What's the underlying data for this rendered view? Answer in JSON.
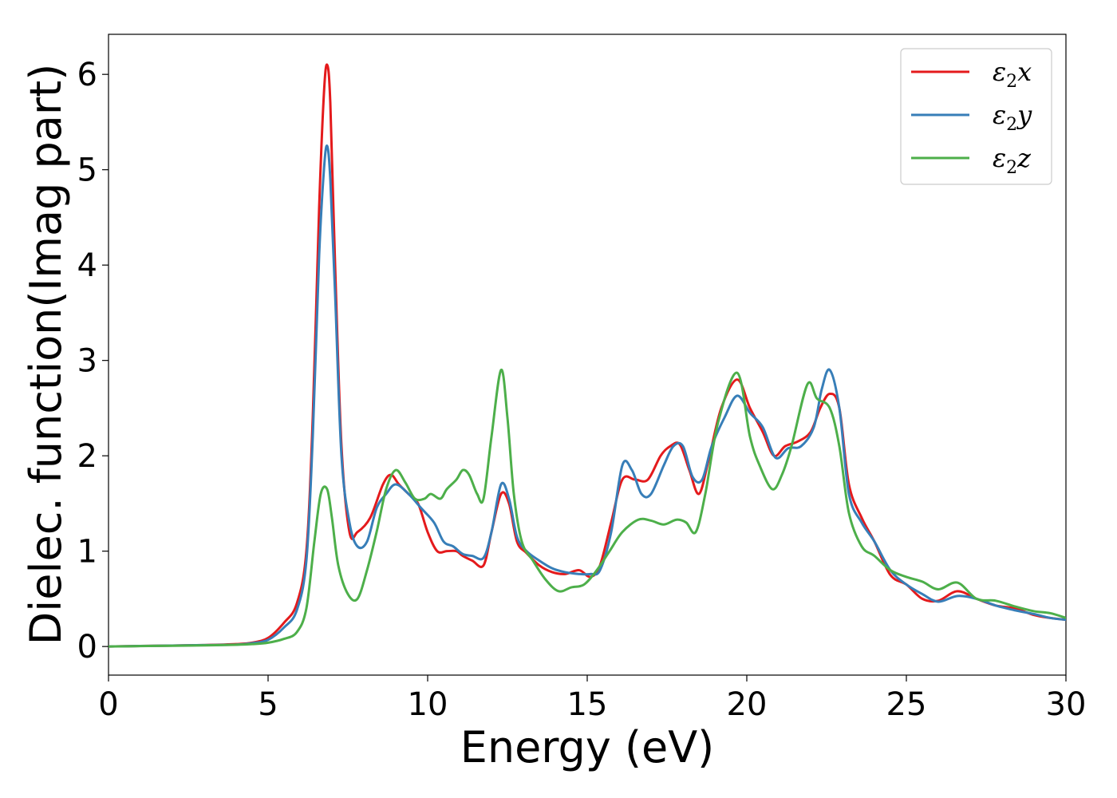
{
  "chart_data": {
    "type": "line",
    "title": "",
    "xlabel": "Energy (eV)",
    "ylabel": "Dielec. function(Imag part)",
    "xlim": [
      0,
      30
    ],
    "ylim": [
      -0.3,
      6.42
    ],
    "xticks": [
      0,
      5,
      10,
      15,
      20,
      25,
      30
    ],
    "yticks": [
      0,
      1,
      2,
      3,
      4,
      5,
      6
    ],
    "grid": false,
    "legend_position": "top-right",
    "series": [
      {
        "name": "ε₂x",
        "legend_main": "ε",
        "legend_sub": "2",
        "legend_tail": "x",
        "color": "#e41a1c",
        "x": [
          0,
          1,
          2,
          3,
          4,
          4.5,
          5,
          5.5,
          5.9,
          6.2,
          6.4,
          6.6,
          6.75,
          6.85,
          6.95,
          7.1,
          7.3,
          7.55,
          7.8,
          8.2,
          8.6,
          8.85,
          9.1,
          9.4,
          9.7,
          10.0,
          10.3,
          10.6,
          10.9,
          11.1,
          11.4,
          11.75,
          12.0,
          12.3,
          12.55,
          12.8,
          13.1,
          13.5,
          13.9,
          14.3,
          14.75,
          15.1,
          15.4,
          15.75,
          16.1,
          16.5,
          16.9,
          17.3,
          17.6,
          17.9,
          18.2,
          18.5,
          18.8,
          19.2,
          19.7,
          20.1,
          20.5,
          20.85,
          21.2,
          21.6,
          22.0,
          22.3,
          22.6,
          22.9,
          23.2,
          23.6,
          24.0,
          24.5,
          25.0,
          25.5,
          26.0,
          26.6,
          27.2,
          27.8,
          28.4,
          29.0,
          29.5,
          30.0
        ],
        "y": [
          0,
          0.005,
          0.01,
          0.015,
          0.025,
          0.04,
          0.09,
          0.25,
          0.45,
          1.0,
          2.4,
          4.6,
          5.8,
          6.1,
          5.7,
          4.0,
          2.1,
          1.2,
          1.2,
          1.35,
          1.7,
          1.8,
          1.7,
          1.6,
          1.5,
          1.2,
          1.0,
          1.0,
          1.0,
          0.95,
          0.9,
          0.85,
          1.2,
          1.6,
          1.5,
          1.1,
          0.98,
          0.85,
          0.78,
          0.76,
          0.8,
          0.73,
          0.85,
          1.3,
          1.75,
          1.75,
          1.75,
          2.0,
          2.1,
          2.12,
          1.85,
          1.6,
          1.95,
          2.5,
          2.8,
          2.5,
          2.25,
          2.0,
          2.1,
          2.15,
          2.25,
          2.5,
          2.65,
          2.5,
          1.7,
          1.35,
          1.1,
          0.75,
          0.65,
          0.5,
          0.48,
          0.58,
          0.5,
          0.43,
          0.4,
          0.33,
          0.3,
          0.28
        ]
      },
      {
        "name": "ε₂y",
        "legend_main": "ε",
        "legend_sub": "2",
        "legend_tail": "y",
        "color": "#377eb8",
        "x": [
          0,
          1,
          2,
          3,
          4,
          4.5,
          5,
          5.5,
          5.9,
          6.2,
          6.4,
          6.6,
          6.75,
          6.85,
          6.95,
          7.1,
          7.3,
          7.55,
          7.8,
          8.1,
          8.4,
          8.7,
          9.0,
          9.4,
          9.8,
          10.2,
          10.5,
          10.8,
          11.1,
          11.4,
          11.75,
          12.0,
          12.3,
          12.55,
          12.8,
          13.1,
          13.5,
          13.9,
          14.3,
          14.75,
          15.1,
          15.4,
          15.75,
          16.1,
          16.4,
          16.7,
          17.0,
          17.4,
          17.7,
          18.0,
          18.3,
          18.6,
          18.9,
          19.3,
          19.7,
          20.1,
          20.5,
          20.9,
          21.3,
          21.7,
          22.1,
          22.35,
          22.6,
          22.9,
          23.2,
          23.6,
          24.0,
          24.5,
          25.0,
          25.5,
          26.0,
          26.6,
          27.2,
          27.8,
          28.4,
          29.0,
          29.5,
          30.0
        ],
        "y": [
          0,
          0.005,
          0.01,
          0.015,
          0.02,
          0.035,
          0.07,
          0.2,
          0.38,
          0.9,
          2.2,
          4.1,
          5.0,
          5.25,
          4.9,
          3.7,
          2.0,
          1.3,
          1.05,
          1.1,
          1.45,
          1.6,
          1.7,
          1.6,
          1.45,
          1.3,
          1.1,
          1.05,
          0.97,
          0.95,
          0.93,
          1.2,
          1.7,
          1.55,
          1.15,
          1.0,
          0.9,
          0.82,
          0.78,
          0.76,
          0.76,
          0.8,
          1.2,
          1.9,
          1.85,
          1.6,
          1.6,
          1.9,
          2.1,
          2.1,
          1.78,
          1.75,
          2.1,
          2.4,
          2.63,
          2.45,
          2.3,
          1.98,
          2.08,
          2.1,
          2.3,
          2.7,
          2.9,
          2.5,
          1.6,
          1.3,
          1.1,
          0.8,
          0.65,
          0.55,
          0.47,
          0.53,
          0.5,
          0.43,
          0.38,
          0.34,
          0.3,
          0.28
        ]
      },
      {
        "name": "ε₂z",
        "legend_main": "ε",
        "legend_sub": "2",
        "legend_tail": "z",
        "color": "#4daf4a",
        "x": [
          0,
          1,
          2,
          3,
          4,
          4.5,
          5,
          5.5,
          5.9,
          6.2,
          6.45,
          6.65,
          6.85,
          7.0,
          7.2,
          7.5,
          7.8,
          8.1,
          8.4,
          8.7,
          9.0,
          9.3,
          9.6,
          9.9,
          10.1,
          10.4,
          10.6,
          10.9,
          11.1,
          11.3,
          11.55,
          11.75,
          12.0,
          12.3,
          12.5,
          12.7,
          12.95,
          13.3,
          13.7,
          14.1,
          14.5,
          14.9,
          15.3,
          15.7,
          16.1,
          16.6,
          17.0,
          17.4,
          17.8,
          18.1,
          18.4,
          18.7,
          19.1,
          19.7,
          20.1,
          20.4,
          20.8,
          21.1,
          21.4,
          21.9,
          22.2,
          22.6,
          22.9,
          23.2,
          23.6,
          24.0,
          24.5,
          25.0,
          25.5,
          26.0,
          26.6,
          27.2,
          27.8,
          28.4,
          29.0,
          29.5,
          30.0
        ],
        "y": [
          0,
          0.004,
          0.008,
          0.012,
          0.018,
          0.025,
          0.04,
          0.08,
          0.15,
          0.4,
          1.1,
          1.6,
          1.65,
          1.35,
          0.85,
          0.55,
          0.5,
          0.8,
          1.2,
          1.65,
          1.85,
          1.72,
          1.55,
          1.55,
          1.6,
          1.55,
          1.65,
          1.75,
          1.85,
          1.8,
          1.6,
          1.55,
          2.2,
          2.9,
          2.4,
          1.6,
          1.1,
          0.9,
          0.7,
          0.58,
          0.62,
          0.65,
          0.8,
          1.0,
          1.2,
          1.33,
          1.32,
          1.28,
          1.33,
          1.3,
          1.2,
          1.6,
          2.35,
          2.87,
          2.2,
          1.9,
          1.65,
          1.8,
          2.1,
          2.75,
          2.6,
          2.5,
          2.1,
          1.4,
          1.05,
          0.95,
          0.8,
          0.73,
          0.68,
          0.6,
          0.67,
          0.5,
          0.48,
          0.42,
          0.37,
          0.35,
          0.3
        ]
      }
    ]
  }
}
